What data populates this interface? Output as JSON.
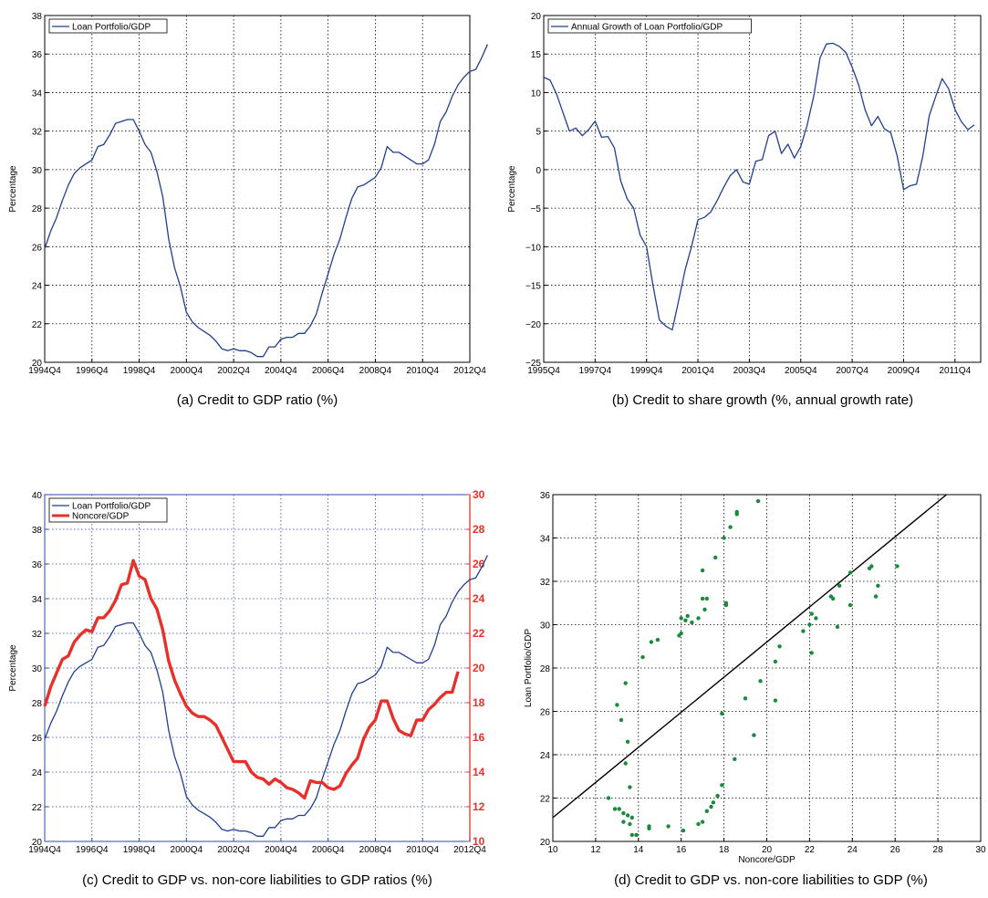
{
  "chart_data": [
    {
      "id": "a",
      "type": "line",
      "caption": "(a) Credit to GDP ratio (%)",
      "ylabel": "Percentage",
      "xlabel": "",
      "ylim": [
        20,
        38
      ],
      "yticks": [
        20,
        22,
        24,
        26,
        28,
        30,
        32,
        34,
        36,
        38
      ],
      "xticks": [
        "1994Q4",
        "1996Q4",
        "1998Q4",
        "2000Q4",
        "2002Q4",
        "2004Q4",
        "2006Q4",
        "2008Q4",
        "2010Q4",
        "2012Q4"
      ],
      "grid": true,
      "legend": "top-left",
      "series": [
        {
          "name": "Loan Portfolio/GDP",
          "color": "#1f3f8f",
          "x_start": "1994Q4",
          "values": [
            25.9,
            26.8,
            27.5,
            28.4,
            29.2,
            29.8,
            30.1,
            30.3,
            30.5,
            31.2,
            31.3,
            31.8,
            32.4,
            32.5,
            32.6,
            32.6,
            32.0,
            31.3,
            30.9,
            29.9,
            28.6,
            26.4,
            24.9,
            23.9,
            22.6,
            22.1,
            21.8,
            21.6,
            21.4,
            21.1,
            20.7,
            20.6,
            20.7,
            20.6,
            20.6,
            20.5,
            20.3,
            20.3,
            20.8,
            20.8,
            21.2,
            21.3,
            21.3,
            21.5,
            21.5,
            21.9,
            22.5,
            23.6,
            24.6,
            25.6,
            26.4,
            27.5,
            28.5,
            29.1,
            29.2,
            29.4,
            29.6,
            30.1,
            31.2,
            30.9,
            30.9,
            30.7,
            30.5,
            30.3,
            30.3,
            30.5,
            31.3,
            32.5,
            33.0,
            33.8,
            34.4,
            34.8,
            35.1,
            35.2,
            35.8,
            36.5
          ]
        }
      ]
    },
    {
      "id": "b",
      "type": "line",
      "caption": "(b) Credit to share growth (%, annual growth rate)",
      "ylabel": "Percentage",
      "xlabel": "",
      "ylim": [
        -25,
        20
      ],
      "yticks": [
        -25,
        -20,
        -15,
        -10,
        -5,
        0,
        5,
        10,
        15,
        20
      ],
      "ytick_labels": [
        "−25",
        "−20",
        "−15",
        "−10",
        "−5",
        "0",
        "5",
        "10",
        "15",
        "20"
      ],
      "xticks": [
        "1995Q4",
        "1997Q4",
        "1999Q4",
        "2001Q4",
        "2003Q4",
        "2005Q4",
        "2007Q4",
        "2009Q4",
        "2011Q4"
      ],
      "grid": true,
      "legend": "top-left",
      "series": [
        {
          "name": "Annual Growth of Loan Portfolio/GDP",
          "color": "#1f3f8f",
          "x_start": "1995Q4",
          "values": [
            12.0,
            11.6,
            9.8,
            7.4,
            5.0,
            5.4,
            4.4,
            5.2,
            6.3,
            4.2,
            4.3,
            2.8,
            -1.5,
            -3.8,
            -5.0,
            -8.5,
            -10.0,
            -15.0,
            -19.5,
            -20.3,
            -20.8,
            -17.0,
            -13.0,
            -10.0,
            -6.5,
            -6.2,
            -5.5,
            -4.0,
            -2.3,
            -0.8,
            0.0,
            -1.6,
            -1.9,
            1.1,
            1.3,
            4.4,
            5.0,
            2.1,
            3.3,
            1.5,
            3.0,
            5.8,
            9.5,
            14.5,
            16.3,
            16.4,
            16.0,
            15.2,
            13.3,
            11.0,
            7.8,
            5.7,
            6.9,
            5.3,
            4.8,
            1.8,
            -2.6,
            -2.1,
            -1.9,
            1.8,
            7.0,
            9.5,
            11.8,
            10.5,
            7.8,
            6.2,
            5.2,
            5.8
          ]
        }
      ]
    },
    {
      "id": "c",
      "type": "line",
      "caption": "(c) Credit to GDP vs. non-core liabilities to GDP ratios (%)",
      "ylabel": "Percentage",
      "xlabel": "",
      "ylim": [
        20,
        40
      ],
      "yticks": [
        20,
        22,
        24,
        26,
        28,
        30,
        32,
        34,
        36,
        38,
        40
      ],
      "y2lim": [
        10,
        30
      ],
      "y2ticks": [
        10,
        12,
        14,
        16,
        18,
        20,
        22,
        24,
        26,
        28,
        30
      ],
      "xticks": [
        "1994Q4",
        "1996Q4",
        "1998Q4",
        "2000Q4",
        "2002Q4",
        "2004Q4",
        "2006Q4",
        "2008Q4",
        "2010Q4",
        "2012Q4"
      ],
      "grid": true,
      "legend": "top-left",
      "series": [
        {
          "name": "Loan Portfolio/GDP",
          "color": "#1f3f8f",
          "axis": "left",
          "x_start": "1994Q4",
          "values": [
            25.9,
            26.8,
            27.5,
            28.4,
            29.2,
            29.8,
            30.1,
            30.3,
            30.5,
            31.2,
            31.3,
            31.8,
            32.4,
            32.5,
            32.6,
            32.6,
            32.0,
            31.3,
            30.9,
            29.9,
            28.6,
            26.4,
            24.9,
            23.9,
            22.6,
            22.1,
            21.8,
            21.6,
            21.4,
            21.1,
            20.7,
            20.6,
            20.7,
            20.6,
            20.6,
            20.5,
            20.3,
            20.3,
            20.8,
            20.8,
            21.2,
            21.3,
            21.3,
            21.5,
            21.5,
            21.9,
            22.5,
            23.6,
            24.6,
            25.6,
            26.4,
            27.5,
            28.5,
            29.1,
            29.2,
            29.4,
            29.6,
            30.1,
            31.2,
            30.9,
            30.9,
            30.7,
            30.5,
            30.3,
            30.3,
            30.5,
            31.3,
            32.5,
            33.0,
            33.8,
            34.4,
            34.8,
            35.1,
            35.2,
            35.8,
            36.5
          ]
        },
        {
          "name": "Noncore/GDP",
          "color": "#e8302a",
          "axis": "right",
          "x_start": "1994Q4",
          "values": [
            17.8,
            18.9,
            19.7,
            20.5,
            20.7,
            21.5,
            21.9,
            22.2,
            22.1,
            22.9,
            22.9,
            23.3,
            23.9,
            24.8,
            24.9,
            26.2,
            25.3,
            25.1,
            24.0,
            23.4,
            22.2,
            20.4,
            19.3,
            18.5,
            17.8,
            17.4,
            17.2,
            17.2,
            17.0,
            16.7,
            16.0,
            15.3,
            14.6,
            14.6,
            14.6,
            14.0,
            13.7,
            13.6,
            13.3,
            13.6,
            13.4,
            13.1,
            13.0,
            12.8,
            12.5,
            13.5,
            13.4,
            13.4,
            13.1,
            13.0,
            13.2,
            13.9,
            14.4,
            14.8,
            15.9,
            16.6,
            17.0,
            18.1,
            18.1,
            17.1,
            16.4,
            16.2,
            16.1,
            17.0,
            17.0,
            17.6,
            17.9,
            18.3,
            18.6,
            18.6,
            19.8
          ]
        }
      ]
    },
    {
      "id": "d",
      "type": "scatter",
      "caption": "(d) Credit to GDP vs. non-core liabilities to GDP (%)",
      "xlabel": "Noncore/GDP",
      "ylabel": "Loan Portfolio/GDP",
      "xlim": [
        10,
        30
      ],
      "ylim": [
        20,
        36
      ],
      "xticks": [
        10,
        12,
        14,
        16,
        18,
        20,
        22,
        24,
        26,
        28,
        30
      ],
      "yticks": [
        20,
        22,
        24,
        26,
        28,
        30,
        32,
        34,
        36
      ],
      "grid": true,
      "point_color": "#1a8a3c",
      "fit_line": {
        "color": "#000000",
        "x": [
          10,
          28.4
        ],
        "y": [
          21.1,
          36.0
        ]
      },
      "points": [
        [
          12.6,
          22.0
        ],
        [
          12.9,
          21.5
        ],
        [
          13.1,
          21.5
        ],
        [
          13.0,
          26.3
        ],
        [
          13.2,
          25.6
        ],
        [
          13.3,
          21.3
        ],
        [
          13.3,
          20.9
        ],
        [
          13.4,
          27.3
        ],
        [
          13.4,
          23.6
        ],
        [
          13.5,
          24.6
        ],
        [
          13.6,
          22.5
        ],
        [
          13.5,
          21.2
        ],
        [
          13.7,
          21.1
        ],
        [
          13.6,
          20.8
        ],
        [
          13.7,
          20.3
        ],
        [
          13.9,
          20.3
        ],
        [
          14.2,
          28.5
        ],
        [
          14.5,
          20.6
        ],
        [
          14.5,
          20.7
        ],
        [
          14.6,
          29.2
        ],
        [
          14.9,
          29.3
        ],
        [
          15.4,
          20.7
        ],
        [
          15.9,
          29.5
        ],
        [
          16.0,
          29.6
        ],
        [
          16.0,
          30.3
        ],
        [
          16.1,
          20.5
        ],
        [
          16.2,
          30.2
        ],
        [
          16.3,
          30.4
        ],
        [
          16.5,
          30.1
        ],
        [
          16.8,
          30.3
        ],
        [
          16.8,
          20.8
        ],
        [
          17.0,
          31.2
        ],
        [
          17.0,
          20.9
        ],
        [
          17.0,
          32.5
        ],
        [
          17.1,
          30.7
        ],
        [
          17.2,
          31.2
        ],
        [
          17.2,
          21.4
        ],
        [
          17.4,
          21.6
        ],
        [
          17.5,
          21.8
        ],
        [
          17.6,
          33.1
        ],
        [
          17.7,
          22.1
        ],
        [
          17.9,
          22.6
        ],
        [
          17.9,
          25.9
        ],
        [
          18.0,
          34.0
        ],
        [
          18.1,
          30.9
        ],
        [
          18.1,
          31.0
        ],
        [
          18.3,
          34.5
        ],
        [
          18.5,
          23.8
        ],
        [
          18.6,
          35.1
        ],
        [
          18.6,
          35.2
        ],
        [
          19.0,
          26.6
        ],
        [
          19.4,
          24.9
        ],
        [
          19.6,
          35.7
        ],
        [
          19.7,
          27.4
        ],
        [
          20.4,
          26.5
        ],
        [
          20.4,
          28.3
        ],
        [
          20.6,
          29.0
        ],
        [
          21.7,
          29.7
        ],
        [
          22.0,
          30.0
        ],
        [
          22.1,
          28.7
        ],
        [
          22.1,
          30.5
        ],
        [
          22.3,
          30.3
        ],
        [
          23.0,
          31.3
        ],
        [
          23.1,
          31.2
        ],
        [
          23.3,
          29.9
        ],
        [
          23.4,
          31.8
        ],
        [
          23.9,
          32.4
        ],
        [
          23.9,
          30.9
        ],
        [
          24.8,
          32.6
        ],
        [
          24.9,
          32.7
        ],
        [
          25.1,
          31.3
        ],
        [
          25.2,
          31.8
        ],
        [
          26.1,
          32.7
        ]
      ]
    }
  ]
}
